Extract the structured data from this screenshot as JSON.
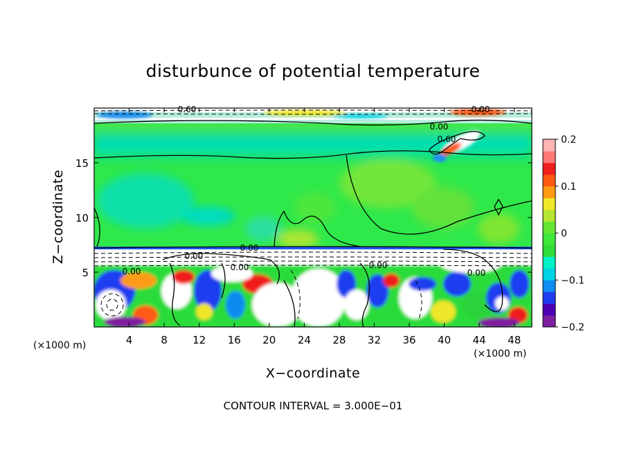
{
  "chart_data": {
    "type": "heatmap",
    "title": "disturbunce of potential temperature",
    "xlabel": "X−coordinate",
    "ylabel": "Z−coordinate",
    "x_unit_label": "(×1000 m)",
    "x_ticks": [
      4,
      8,
      12,
      16,
      20,
      24,
      28,
      32,
      36,
      40,
      44,
      48
    ],
    "y_ticks": [
      5,
      10,
      15
    ],
    "xlim": [
      0,
      50
    ],
    "ylim": [
      0,
      20
    ],
    "colorbar": {
      "ticks": [
        "0.2",
        "0.1",
        "0",
        "−0.1",
        "−0.2"
      ],
      "tick_values": [
        0.2,
        0.1,
        0,
        -0.1,
        -0.2
      ],
      "range": [
        -0.2,
        0.2
      ],
      "colors": [
        "#7f1f9f",
        "#4c00b2",
        "#1f3df0",
        "#0f8cf0",
        "#00d2e6",
        "#00f0c8",
        "#2fdc3a",
        "#3de83a",
        "#66e632",
        "#b4e630",
        "#f0e62a",
        "#ff9b14",
        "#ff5a14",
        "#f01e1e",
        "#ff7878",
        "#ffb4b4"
      ]
    },
    "contour_labels": [
      "0.60",
      "0.00",
      "0.00",
      "0.00",
      "0.00",
      "0.00",
      "0.00",
      "0.60",
      "0.00",
      "0.00"
    ],
    "contour_interval_text": "CONTOUR INTERVAL = 3.000E−01"
  }
}
